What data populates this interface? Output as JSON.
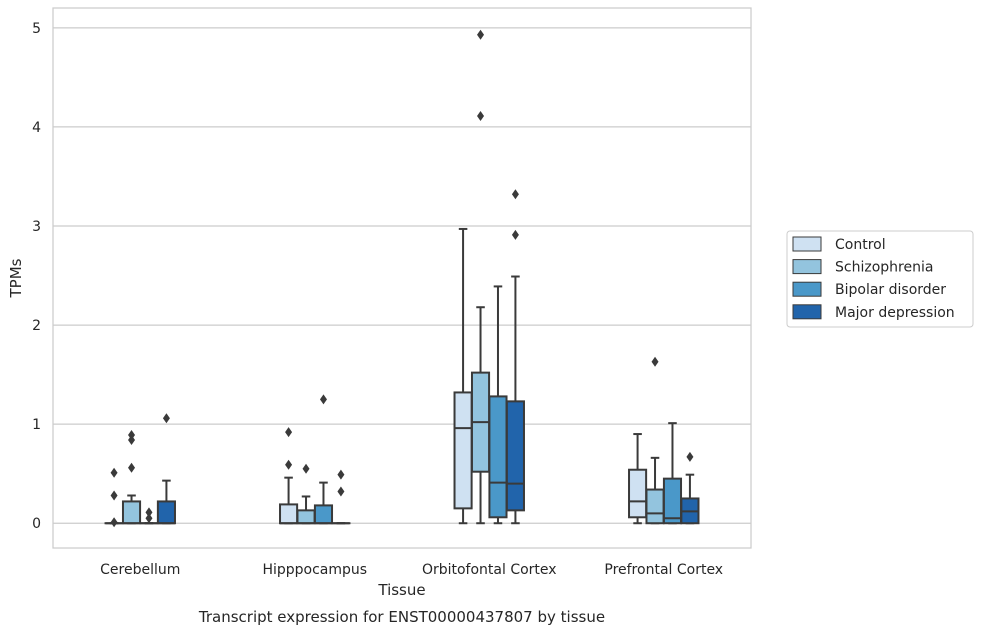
{
  "colors": {
    "Control": "#cfe1f2",
    "Schizophrenia": "#93c4de",
    "Bipolar disorder": "#4a98c9",
    "Major depression": "#2164ab",
    "edge": "#3a3a3a",
    "grid": "#cccccc",
    "background": "#ffffff"
  },
  "chart_data": {
    "type": "box",
    "title": "",
    "caption": "Transcript expression for ENST00000437807 by tissue",
    "xlabel": "Tissue",
    "ylabel": "TPMs",
    "ylim": [
      -0.25,
      5.2
    ],
    "yticks": [
      0,
      1,
      2,
      3,
      4,
      5
    ],
    "grid": "horizontal",
    "legend_placement": "right",
    "categories": [
      "Cerebellum",
      "Hipppocampus",
      "Orbitofontal Cortex",
      "Prefrontal Cortex"
    ],
    "series": [
      {
        "name": "Control",
        "boxes": [
          {
            "q1": 0,
            "median": 0,
            "q3": 0,
            "whislo": 0,
            "whishi": 0,
            "fliers": [
              0.51,
              0.28,
              0.01
            ]
          },
          {
            "q1": 0,
            "median": 0,
            "q3": 0.19,
            "whislo": 0,
            "whishi": 0.46,
            "fliers": [
              0.92,
              0.59
            ]
          },
          {
            "q1": 0.15,
            "median": 0.96,
            "q3": 1.32,
            "whislo": 0,
            "whishi": 2.97,
            "fliers": []
          },
          {
            "q1": 0.06,
            "median": 0.22,
            "q3": 0.54,
            "whislo": 0,
            "whishi": 0.9,
            "fliers": []
          }
        ]
      },
      {
        "name": "Schizophrenia",
        "boxes": [
          {
            "q1": 0,
            "median": 0,
            "q3": 0.22,
            "whislo": 0,
            "whishi": 0.28,
            "fliers": [
              0.89,
              0.84,
              0.56
            ]
          },
          {
            "q1": 0,
            "median": 0,
            "q3": 0.13,
            "whislo": 0,
            "whishi": 0.27,
            "fliers": [
              0.55
            ]
          },
          {
            "q1": 0.52,
            "median": 1.02,
            "q3": 1.52,
            "whislo": 0,
            "whishi": 2.18,
            "fliers": [
              4.93,
              4.11
            ]
          },
          {
            "q1": 0,
            "median": 0.1,
            "q3": 0.34,
            "whislo": 0,
            "whishi": 0.66,
            "fliers": [
              1.63
            ]
          }
        ]
      },
      {
        "name": "Bipolar disorder",
        "boxes": [
          {
            "q1": 0,
            "median": 0,
            "q3": 0,
            "whislo": 0,
            "whishi": 0,
            "fliers": [
              0.11,
              0.05
            ]
          },
          {
            "q1": 0,
            "median": 0,
            "q3": 0.18,
            "whislo": 0,
            "whishi": 0.41,
            "fliers": [
              1.25
            ]
          },
          {
            "q1": 0.06,
            "median": 0.41,
            "q3": 1.28,
            "whislo": 0,
            "whishi": 2.39,
            "fliers": []
          },
          {
            "q1": 0,
            "median": 0.05,
            "q3": 0.45,
            "whislo": 0,
            "whishi": 1.01,
            "fliers": []
          }
        ]
      },
      {
        "name": "Major depression",
        "boxes": [
          {
            "q1": 0,
            "median": 0,
            "q3": 0.22,
            "whislo": 0,
            "whishi": 0.43,
            "fliers": [
              1.06
            ]
          },
          {
            "q1": 0,
            "median": 0,
            "q3": 0,
            "whislo": 0,
            "whishi": 0,
            "fliers": [
              0.49,
              0.32
            ]
          },
          {
            "q1": 0.13,
            "median": 0.4,
            "q3": 1.23,
            "whislo": 0,
            "whishi": 2.49,
            "fliers": [
              3.32,
              2.91
            ]
          },
          {
            "q1": 0,
            "median": 0.12,
            "q3": 0.25,
            "whislo": 0,
            "whishi": 0.49,
            "fliers": [
              0.67
            ]
          }
        ]
      }
    ]
  }
}
